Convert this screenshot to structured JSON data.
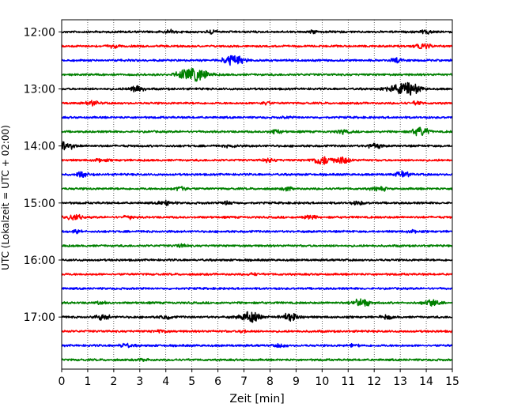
{
  "chart_data": {
    "type": "line",
    "title": "",
    "xlabel": "Zeit  [min]",
    "ylabel": "UTC (Lokalzeit = UTC + 02:00)",
    "xlim": [
      0,
      15
    ],
    "x_ticks": [
      "0",
      "1",
      "2",
      "3",
      "4",
      "5",
      "6",
      "7",
      "8",
      "9",
      "10",
      "11",
      "12",
      "13",
      "14",
      "15"
    ],
    "y_ticks": [
      "12:00",
      "13:00",
      "14:00",
      "15:00",
      "16:00",
      "17:00"
    ],
    "grid": "vertical dotted at each minute",
    "colors": [
      "#000000",
      "#ff0000",
      "#0000ff",
      "#008000"
    ],
    "series": [
      {
        "start": "12:00",
        "color": "#000000",
        "bursts": [
          [
            4.2,
            0.6
          ],
          [
            5.8,
            0.5
          ],
          [
            9.7,
            0.4
          ],
          [
            14.0,
            0.5
          ]
        ]
      },
      {
        "start": "12:15",
        "color": "#ff0000",
        "bursts": [
          [
            2.0,
            0.5
          ],
          [
            13.9,
            0.8
          ]
        ]
      },
      {
        "start": "12:30",
        "color": "#0000ff",
        "bursts": [
          [
            6.6,
            1.6
          ],
          [
            12.9,
            0.7
          ]
        ]
      },
      {
        "start": "12:45",
        "color": "#008000",
        "bursts": [
          [
            5.2,
            1.9
          ],
          [
            4.6,
            0.9
          ]
        ]
      },
      {
        "start": "13:00",
        "color": "#000000",
        "bursts": [
          [
            2.9,
            0.9
          ],
          [
            13.3,
            2.0
          ],
          [
            12.6,
            0.7
          ]
        ]
      },
      {
        "start": "13:15",
        "color": "#ff0000",
        "bursts": [
          [
            1.2,
            0.6
          ],
          [
            7.8,
            0.5
          ],
          [
            13.6,
            0.5
          ]
        ]
      },
      {
        "start": "13:30",
        "color": "#0000ff",
        "bursts": [
          [
            8.7,
            0.4
          ]
        ]
      },
      {
        "start": "13:45",
        "color": "#008000",
        "bursts": [
          [
            8.2,
            0.6
          ],
          [
            13.8,
            1.2
          ],
          [
            10.8,
            0.6
          ]
        ]
      },
      {
        "start": "14:00",
        "color": "#000000",
        "bursts": [
          [
            0.15,
            1.3
          ],
          [
            12.0,
            0.7
          ],
          [
            6.5,
            0.4
          ]
        ]
      },
      {
        "start": "14:15",
        "color": "#ff0000",
        "bursts": [
          [
            10.0,
            1.3
          ],
          [
            10.8,
            0.9
          ],
          [
            8.0,
            0.6
          ],
          [
            1.5,
            0.5
          ]
        ]
      },
      {
        "start": "14:30",
        "color": "#0000ff",
        "bursts": [
          [
            0.8,
            0.7
          ],
          [
            13.1,
            0.8
          ]
        ]
      },
      {
        "start": "14:45",
        "color": "#008000",
        "bursts": [
          [
            4.6,
            0.7
          ],
          [
            12.2,
            0.8
          ],
          [
            8.7,
            0.5
          ]
        ]
      },
      {
        "start": "15:00",
        "color": "#000000",
        "bursts": [
          [
            4.0,
            0.8
          ],
          [
            6.4,
            0.6
          ],
          [
            11.4,
            0.5
          ]
        ]
      },
      {
        "start": "15:15",
        "color": "#ff0000",
        "bursts": [
          [
            0.5,
            0.8
          ],
          [
            9.5,
            0.6
          ],
          [
            2.6,
            0.5
          ]
        ]
      },
      {
        "start": "15:30",
        "color": "#0000ff",
        "bursts": [
          [
            0.6,
            0.4
          ],
          [
            13.5,
            0.4
          ]
        ]
      },
      {
        "start": "15:45",
        "color": "#008000",
        "bursts": [
          [
            4.6,
            0.4
          ]
        ]
      },
      {
        "start": "16:00",
        "color": "#000000",
        "bursts": []
      },
      {
        "start": "16:15",
        "color": "#ff0000",
        "bursts": [
          [
            7.4,
            0.3
          ]
        ]
      },
      {
        "start": "16:30",
        "color": "#0000ff",
        "bursts": []
      },
      {
        "start": "16:45",
        "color": "#008000",
        "bursts": [
          [
            11.5,
            1.2
          ],
          [
            14.2,
            1.0
          ],
          [
            1.5,
            0.4
          ]
        ]
      },
      {
        "start": "17:00",
        "color": "#000000",
        "bursts": [
          [
            7.2,
            1.6
          ],
          [
            8.8,
            1.3
          ],
          [
            1.6,
            0.8
          ],
          [
            12.5,
            0.6
          ],
          [
            4.0,
            0.5
          ]
        ]
      },
      {
        "start": "17:15",
        "color": "#ff0000",
        "bursts": [
          [
            3.8,
            0.5
          ],
          [
            7.0,
            0.4
          ]
        ]
      },
      {
        "start": "17:30",
        "color": "#0000ff",
        "bursts": [
          [
            2.5,
            0.6
          ],
          [
            8.4,
            0.5
          ],
          [
            11.2,
            0.4
          ]
        ]
      },
      {
        "start": "17:45",
        "color": "#008000",
        "bursts": [
          [
            3.2,
            0.4
          ]
        ]
      }
    ]
  }
}
